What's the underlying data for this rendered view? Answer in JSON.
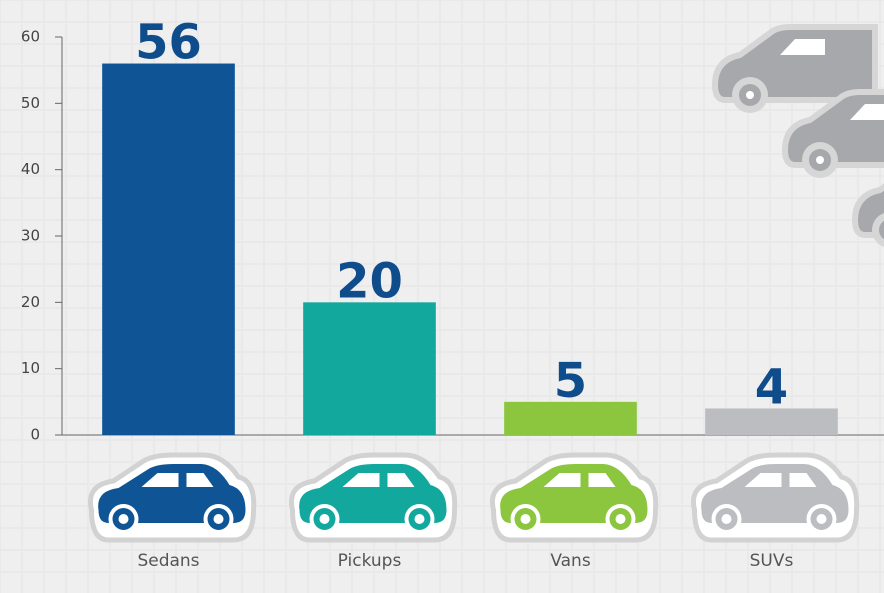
{
  "chart_data": {
    "type": "bar",
    "categories": [
      "Sedans",
      "Pickups",
      "Vans",
      "SUVs"
    ],
    "values": [
      56,
      20,
      5,
      4
    ],
    "colors": [
      "#0f5596",
      "#13a89e",
      "#8cc63f",
      "#bcbdc0"
    ],
    "ylim": [
      0,
      60
    ],
    "yticks": [
      0,
      10,
      20,
      30,
      40,
      50,
      60
    ]
  }
}
